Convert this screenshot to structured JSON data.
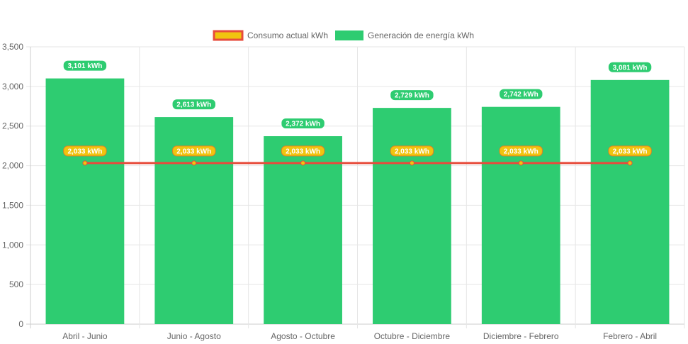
{
  "chart_data": {
    "type": "bar",
    "categories": [
      "Abril - Junio",
      "Junio - Agosto",
      "Agosto - Octubre",
      "Octubre - Diciembre",
      "Diciembre - Febrero",
      "Febrero - Abril"
    ],
    "series": [
      {
        "name": "Consumo actual kWh",
        "type": "line",
        "values": [
          2033,
          2033,
          2033,
          2033,
          2033,
          2033
        ],
        "labels": [
          "2,033 kWh",
          "2,033 kWh",
          "2,033 kWh",
          "2,033 kWh",
          "2,033 kWh",
          "2,033 kWh"
        ],
        "color": "#e74c3c",
        "fill": "#f1c40f"
      },
      {
        "name": "Generación de energía kWh",
        "type": "bar",
        "values": [
          3101,
          2613,
          2372,
          2729,
          2742,
          3081
        ],
        "labels": [
          "3,101 kWh",
          "2,613 kWh",
          "2,372 kWh",
          "2,729 kWh",
          "2,742 kWh",
          "3,081 kWh"
        ],
        "color": "#2ecc71"
      }
    ],
    "y_ticks": [
      "0",
      "500",
      "1,000",
      "1,500",
      "2,000",
      "2,500",
      "3,000",
      "3,500"
    ],
    "ylim": [
      0,
      3500
    ],
    "grid": true,
    "legend_position": "top-center"
  }
}
